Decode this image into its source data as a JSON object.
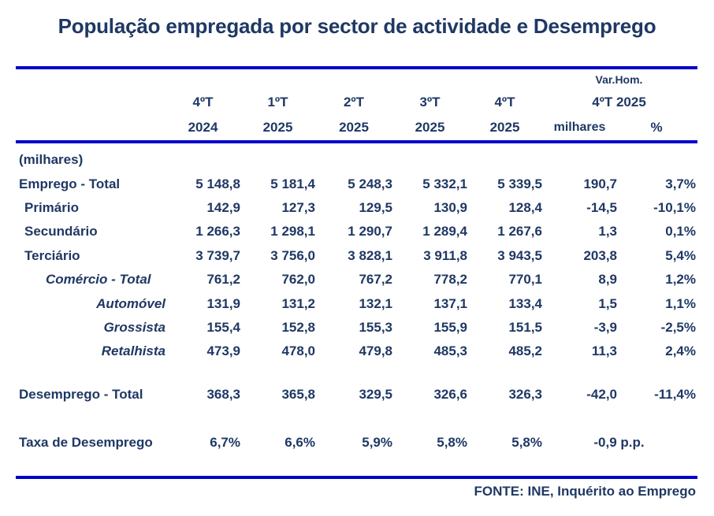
{
  "title": "População empregada por sector de actividade e Desemprego",
  "colors": {
    "text_navy": "#1F3864",
    "rule_blue": "#0101CC",
    "background": "#FFFFFF"
  },
  "footer": {
    "source": "FONTE: INE, Inquérito ao Emprego"
  },
  "chart_data": {
    "type": "table",
    "title": "População empregada por sector de actividade e Desemprego",
    "unit": "milhares",
    "column_groups": {
      "quarters": [
        {
          "q": "4ºT",
          "y": "2024"
        },
        {
          "q": "1ºT",
          "y": "2025"
        },
        {
          "q": "2ºT",
          "y": "2025"
        },
        {
          "q": "3ºT",
          "y": "2025"
        },
        {
          "q": "4ºT",
          "y": "2025"
        }
      ],
      "variation": {
        "header": "Var.Hom.",
        "subheader": "4ºT 2025",
        "unit_milhares": "milhares",
        "unit_percent": "%"
      }
    },
    "rows": [
      {
        "label": "(milhares)",
        "indent": 0,
        "italic": false,
        "values": [
          "",
          "",
          "",
          "",
          "",
          "",
          ""
        ]
      },
      {
        "label": "Emprego - Total",
        "indent": 0,
        "italic": false,
        "values": [
          "5 148,8",
          "5 181,4",
          "5 248,3",
          "5 332,1",
          "5 339,5",
          "190,7",
          "3,7%"
        ]
      },
      {
        "label": "Primário",
        "indent": 1,
        "italic": false,
        "values": [
          "142,9",
          "127,3",
          "129,5",
          "130,9",
          "128,4",
          "-14,5",
          "-10,1%"
        ]
      },
      {
        "label": "Secundário",
        "indent": 1,
        "italic": false,
        "values": [
          "1 266,3",
          "1 298,1",
          "1 290,7",
          "1 289,4",
          "1 267,6",
          "1,3",
          "0,1%"
        ]
      },
      {
        "label": "Terciário",
        "indent": 1,
        "italic": false,
        "values": [
          "3 739,7",
          "3 756,0",
          "3 828,1",
          "3 911,8",
          "3 943,5",
          "203,8",
          "5,4%"
        ]
      },
      {
        "label": "Comércio - Total",
        "indent": 2,
        "italic": true,
        "values": [
          "761,2",
          "762,0",
          "767,2",
          "778,2",
          "770,1",
          "8,9",
          "1,2%"
        ]
      },
      {
        "label": "Automóvel",
        "indent": 3,
        "italic": true,
        "values": [
          "131,9",
          "131,2",
          "132,1",
          "137,1",
          "133,4",
          "1,5",
          "1,1%"
        ]
      },
      {
        "label": "Grossista",
        "indent": 3,
        "italic": true,
        "values": [
          "155,4",
          "152,8",
          "155,3",
          "155,9",
          "151,5",
          "-3,9",
          "-2,5%"
        ]
      },
      {
        "label": "Retalhista",
        "indent": 3,
        "italic": true,
        "values": [
          "473,9",
          "478,0",
          "479,8",
          "485,3",
          "485,2",
          "11,3",
          "2,4%"
        ]
      },
      {
        "spacer": true
      },
      {
        "label": "Desemprego - Total",
        "indent": 0,
        "italic": false,
        "values": [
          "368,3",
          "365,8",
          "329,5",
          "326,6",
          "326,3",
          "-42,0",
          "-11,4%"
        ]
      },
      {
        "spacer": true
      },
      {
        "label": "Taxa de Desemprego",
        "indent": 0,
        "italic": false,
        "values": [
          "6,7%",
          "6,6%",
          "5,9%",
          "5,8%",
          "5,8%"
        ],
        "span_value": "-0,9 p.p."
      }
    ]
  }
}
